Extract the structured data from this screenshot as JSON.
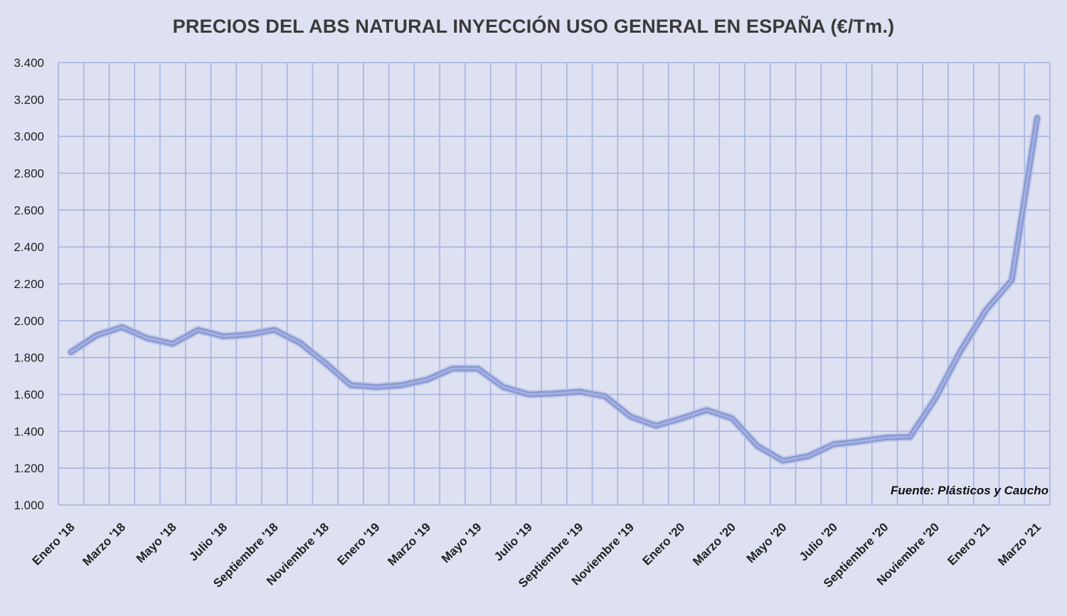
{
  "chart_data": {
    "type": "line",
    "title": "PRECIOS DEL ABS NATURAL INYECCIÓN  USO GENERAL EN ESPAÑA  (€/Tm.)",
    "xlabel": "",
    "ylabel": "",
    "ylim": [
      1000,
      3400
    ],
    "yticks": [
      1000,
      1200,
      1400,
      1600,
      1800,
      2000,
      2200,
      2400,
      2600,
      2800,
      3000,
      3200,
      3400
    ],
    "ytick_labels": [
      "1.000",
      "1.200",
      "1.400",
      "1.600",
      "1.800",
      "2.000",
      "2.200",
      "2.400",
      "2.600",
      "2.800",
      "3.000",
      "3.200",
      "3.400"
    ],
    "x_tick_labels": [
      "Enero '18",
      "Marzo '18",
      "Mayo '18",
      "Julio '18",
      "Septiembre '18",
      "Noviembre '18",
      "Enero '19",
      "Marzo '19",
      "Mayo '19",
      "Julio '19",
      "Septiembre '19",
      "Noviembre '19",
      "Enero '20",
      "Marzo '20",
      "Mayo '20",
      "Julio '20",
      "Septiembre '20",
      "Noviembre '20",
      "Enero '21",
      "Marzo '21"
    ],
    "grid": true,
    "series": [
      {
        "name": "ABS natural inyección",
        "color": "#8b9bd4",
        "values": [
          1830,
          1920,
          1965,
          1905,
          1875,
          1950,
          1915,
          1925,
          1950,
          1880,
          1770,
          1650,
          1640,
          1650,
          1680,
          1740,
          1740,
          1640,
          1600,
          1605,
          1615,
          1590,
          1480,
          1430,
          1470,
          1515,
          1470,
          1320,
          1240,
          1265,
          1330,
          1345,
          1365,
          1370,
          1580,
          1840,
          2060,
          2220,
          3100
        ]
      }
    ]
  },
  "source_label": "Fuente: Plásticos y Caucho",
  "colors": {
    "background": "#dde1f1",
    "grid": "#a7b3e0",
    "line": "#8b9bd4"
  }
}
